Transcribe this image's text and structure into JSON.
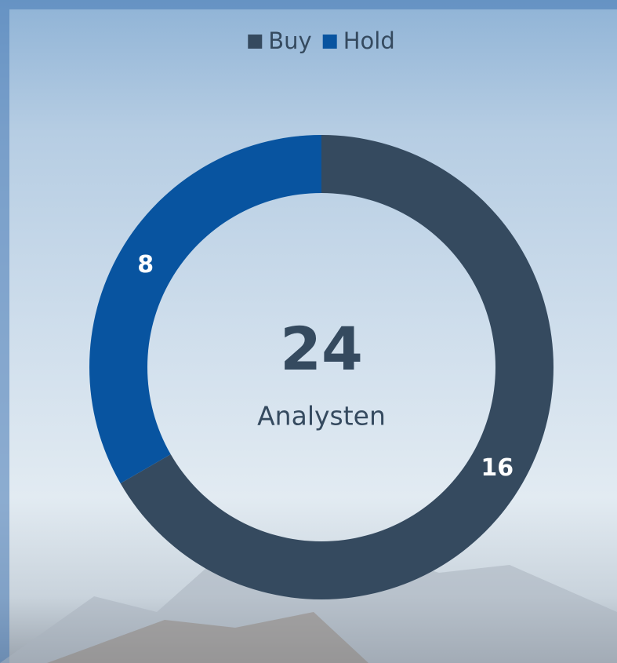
{
  "chart_data": {
    "type": "donut",
    "categories": [
      "Buy",
      "Hold"
    ],
    "values": [
      16,
      8
    ],
    "colors": [
      "#354a5f",
      "#0854a0"
    ],
    "center_value": 24,
    "center_label": "Analysten",
    "legend": "top"
  }
}
